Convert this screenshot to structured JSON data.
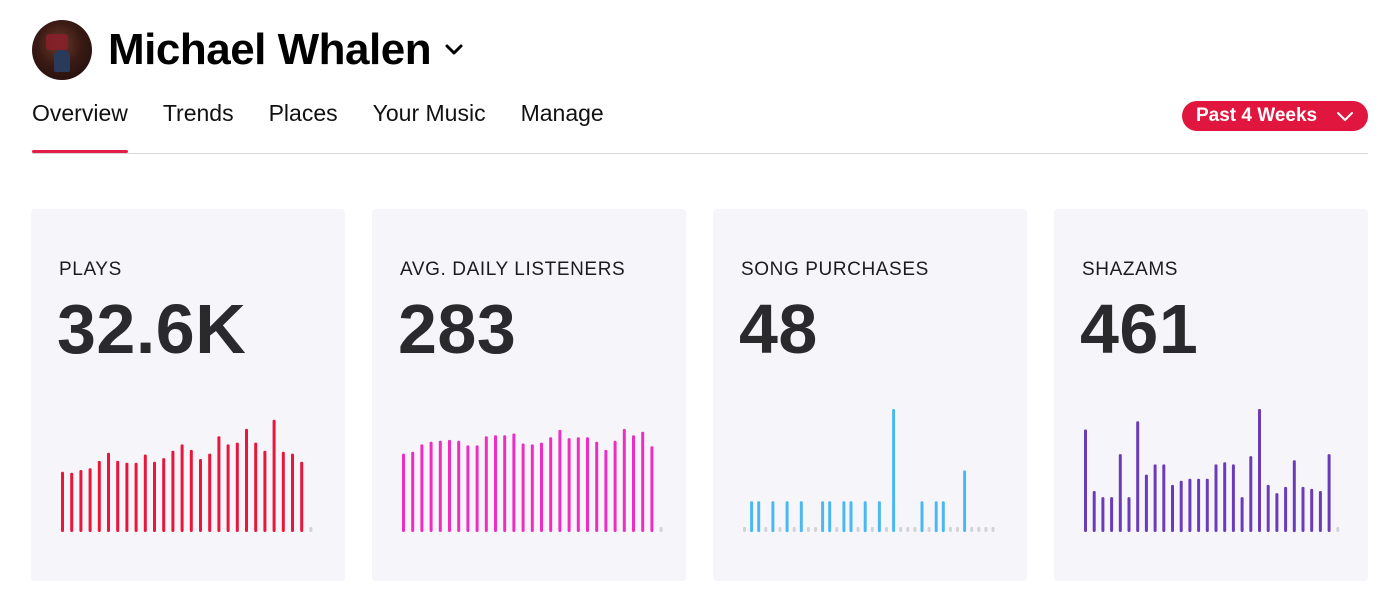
{
  "profile": {
    "name": "Michael Whalen"
  },
  "tabs": [
    {
      "label": "Overview",
      "active": true
    },
    {
      "label": "Trends",
      "active": false
    },
    {
      "label": "Places",
      "active": false
    },
    {
      "label": "Your Music",
      "active": false
    },
    {
      "label": "Manage",
      "active": false
    }
  ],
  "period": {
    "label": "Past 4 Weeks"
  },
  "colors": {
    "accent": "#e0163f",
    "card_bg": "#f6f6fa",
    "empty_bar": "#d2d2d8"
  },
  "icons": {
    "name_dropdown": "chevron-down-icon",
    "period_dropdown": "chevron-down-icon"
  },
  "cards": [
    {
      "label": "PLAYS",
      "value": "32.6K",
      "color": "#e8163c"
    },
    {
      "label": "AVG. DAILY LISTENERS",
      "value": "283",
      "color": "#ee2dc2"
    },
    {
      "label": "SONG PURCHASES",
      "value": "48",
      "color": "#4cb8f0"
    },
    {
      "label": "SHAZAMS",
      "value": "461",
      "color": "#6a3cba"
    }
  ],
  "chart_data": [
    {
      "type": "bar",
      "title": "PLAYS",
      "values": [
        66,
        65,
        68,
        70,
        78,
        87,
        78,
        76,
        76,
        85,
        77,
        81,
        89,
        96,
        90,
        80,
        86,
        105,
        96,
        98,
        113,
        98,
        89,
        123,
        88,
        86,
        77,
        0
      ],
      "ylim": [
        0,
        125
      ]
    },
    {
      "type": "bar",
      "title": "AVG. DAILY LISTENERS",
      "values": [
        86,
        88,
        96,
        99,
        100,
        101,
        100,
        95,
        95,
        105,
        106,
        106,
        108,
        97,
        96,
        98,
        104,
        112,
        103,
        104,
        104,
        99,
        90,
        100,
        113,
        106,
        110,
        94,
        0
      ],
      "ylim": [
        0,
        125
      ]
    },
    {
      "type": "bar",
      "title": "SONG PURCHASES",
      "values": [
        0,
        1,
        1,
        0,
        1,
        0,
        1,
        0,
        1,
        0,
        0,
        1,
        1,
        0,
        1,
        1,
        0,
        1,
        0,
        1,
        0,
        4,
        0,
        0,
        0,
        1,
        0,
        1,
        1,
        0,
        0,
        2,
        0,
        0,
        0,
        0
      ],
      "ylim": [
        0,
        4
      ]
    },
    {
      "type": "bar",
      "title": "SHAZAMS",
      "values": [
        5,
        2,
        1.7,
        1.7,
        3.8,
        1.7,
        5.4,
        2.8,
        3.3,
        3.3,
        2.3,
        2.5,
        2.6,
        2.6,
        2.6,
        3.3,
        3.4,
        3.3,
        1.7,
        3.7,
        6,
        2.3,
        1.9,
        2.2,
        3.5,
        2.2,
        2.1,
        2,
        3.8,
        0
      ],
      "ylim": [
        0,
        6
      ]
    }
  ]
}
